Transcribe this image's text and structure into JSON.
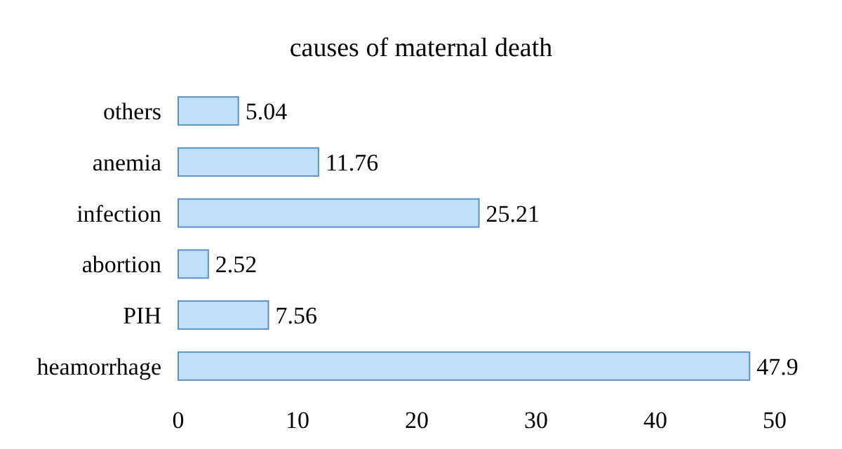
{
  "chart_data": {
    "type": "bar",
    "orientation": "horizontal",
    "title": "causes of maternal death",
    "categories": [
      "others",
      "anemia",
      "infection",
      "abortion",
      "PIH",
      "heamorrhage"
    ],
    "values": [
      5.04,
      11.76,
      25.21,
      2.52,
      7.56,
      47.9
    ],
    "color": "#bfe0f8",
    "xlim": [
      0,
      50
    ],
    "xticks": [
      0,
      10,
      20,
      30,
      40,
      50
    ],
    "data_labels": true,
    "grid": false
  }
}
